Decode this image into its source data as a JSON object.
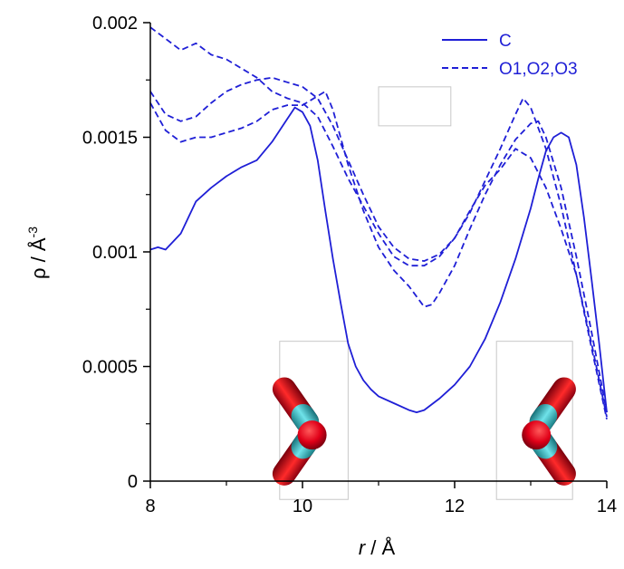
{
  "chart_data": {
    "type": "line",
    "xlabel": "r / Å",
    "ylabel": "ρ / Å-3",
    "xlim": [
      8,
      14
    ],
    "ylim": [
      0,
      0.002
    ],
    "x_ticks": [
      8,
      10,
      12,
      14
    ],
    "x_tick_labels": [
      "8",
      "10",
      "12",
      "14"
    ],
    "y_ticks": [
      0,
      0.0005,
      0.001,
      0.0015,
      0.002
    ],
    "y_tick_labels": [
      "0",
      "0.0005",
      "0.001",
      "0.0015",
      "0.002"
    ],
    "legend": {
      "position": "top-right",
      "entries": [
        "C",
        "O1,O2,O3"
      ]
    },
    "grid": false,
    "color": "#1f1fd6",
    "series": [
      {
        "name": "C",
        "style": "solid",
        "points": [
          [
            8.0,
            0.00101
          ],
          [
            8.1,
            0.00102
          ],
          [
            8.2,
            0.00101
          ],
          [
            8.4,
            0.00108
          ],
          [
            8.6,
            0.00122
          ],
          [
            8.8,
            0.00128
          ],
          [
            9.0,
            0.00133
          ],
          [
            9.2,
            0.00137
          ],
          [
            9.4,
            0.0014
          ],
          [
            9.6,
            0.00148
          ],
          [
            9.8,
            0.00158
          ],
          [
            9.9,
            0.00163
          ],
          [
            10.0,
            0.00161
          ],
          [
            10.1,
            0.00155
          ],
          [
            10.2,
            0.0014
          ],
          [
            10.3,
            0.00118
          ],
          [
            10.4,
            0.00097
          ],
          [
            10.5,
            0.00078
          ],
          [
            10.6,
            0.0006
          ],
          [
            10.7,
            0.0005
          ],
          [
            10.8,
            0.00044
          ],
          [
            10.9,
            0.0004
          ],
          [
            11.0,
            0.00037
          ],
          [
            11.2,
            0.00034
          ],
          [
            11.4,
            0.00031
          ],
          [
            11.5,
            0.0003
          ],
          [
            11.6,
            0.00031
          ],
          [
            11.8,
            0.00036
          ],
          [
            12.0,
            0.00042
          ],
          [
            12.2,
            0.0005
          ],
          [
            12.4,
            0.00062
          ],
          [
            12.6,
            0.00078
          ],
          [
            12.8,
            0.00097
          ],
          [
            13.0,
            0.00119
          ],
          [
            13.1,
            0.00132
          ],
          [
            13.2,
            0.00144
          ],
          [
            13.3,
            0.0015
          ],
          [
            13.4,
            0.00152
          ],
          [
            13.5,
            0.0015
          ],
          [
            13.6,
            0.00138
          ],
          [
            13.7,
            0.00115
          ],
          [
            13.8,
            0.00088
          ],
          [
            13.9,
            0.0006
          ],
          [
            14.0,
            0.0003
          ]
        ]
      },
      {
        "name": "O1",
        "style": "dashed",
        "points": [
          [
            8.0,
            0.00198
          ],
          [
            8.2,
            0.00193
          ],
          [
            8.4,
            0.00188
          ],
          [
            8.6,
            0.00191
          ],
          [
            8.8,
            0.00186
          ],
          [
            9.0,
            0.00184
          ],
          [
            9.2,
            0.0018
          ],
          [
            9.4,
            0.00176
          ],
          [
            9.6,
            0.0017
          ],
          [
            9.8,
            0.00167
          ],
          [
            10.0,
            0.00165
          ],
          [
            10.2,
            0.00159
          ],
          [
            10.4,
            0.00146
          ],
          [
            10.6,
            0.00132
          ],
          [
            10.8,
            0.0012
          ],
          [
            11.0,
            0.00108
          ],
          [
            11.2,
            0.00098
          ],
          [
            11.4,
            0.00094
          ],
          [
            11.6,
            0.00094
          ],
          [
            11.8,
            0.00098
          ],
          [
            12.0,
            0.00106
          ],
          [
            12.2,
            0.00118
          ],
          [
            12.4,
            0.00129
          ],
          [
            12.6,
            0.00136
          ],
          [
            12.8,
            0.00145
          ],
          [
            13.0,
            0.00141
          ],
          [
            13.2,
            0.00128
          ],
          [
            13.4,
            0.0011
          ],
          [
            13.6,
            0.0009
          ],
          [
            13.8,
            0.0006
          ],
          [
            14.0,
            0.00028
          ]
        ]
      },
      {
        "name": "O2",
        "style": "dashed",
        "points": [
          [
            8.0,
            0.0017
          ],
          [
            8.2,
            0.0016
          ],
          [
            8.4,
            0.00157
          ],
          [
            8.6,
            0.00159
          ],
          [
            8.8,
            0.00165
          ],
          [
            9.0,
            0.0017
          ],
          [
            9.2,
            0.00173
          ],
          [
            9.4,
            0.00175
          ],
          [
            9.6,
            0.00176
          ],
          [
            9.8,
            0.00174
          ],
          [
            10.0,
            0.00172
          ],
          [
            10.2,
            0.00167
          ],
          [
            10.4,
            0.00155
          ],
          [
            10.6,
            0.0014
          ],
          [
            10.8,
            0.00125
          ],
          [
            11.0,
            0.00111
          ],
          [
            11.2,
            0.00102
          ],
          [
            11.4,
            0.00097
          ],
          [
            11.6,
            0.00096
          ],
          [
            11.8,
            0.00099
          ],
          [
            12.0,
            0.00106
          ],
          [
            12.2,
            0.00117
          ],
          [
            12.4,
            0.00131
          ],
          [
            12.6,
            0.00145
          ],
          [
            12.8,
            0.0016
          ],
          [
            12.9,
            0.00167
          ],
          [
            13.0,
            0.00163
          ],
          [
            13.2,
            0.00145
          ],
          [
            13.4,
            0.0012
          ],
          [
            13.6,
            0.0009
          ],
          [
            13.8,
            0.00058
          ],
          [
            14.0,
            0.00027
          ]
        ]
      },
      {
        "name": "O3",
        "style": "dashed",
        "points": [
          [
            8.0,
            0.00165
          ],
          [
            8.2,
            0.00153
          ],
          [
            8.4,
            0.00148
          ],
          [
            8.6,
            0.0015
          ],
          [
            8.8,
            0.0015
          ],
          [
            9.0,
            0.00152
          ],
          [
            9.2,
            0.00154
          ],
          [
            9.4,
            0.00157
          ],
          [
            9.6,
            0.00162
          ],
          [
            9.8,
            0.00164
          ],
          [
            10.0,
            0.00164
          ],
          [
            10.2,
            0.00168
          ],
          [
            10.3,
            0.0017
          ],
          [
            10.4,
            0.00162
          ],
          [
            10.6,
            0.00138
          ],
          [
            10.8,
            0.00118
          ],
          [
            11.0,
            0.00102
          ],
          [
            11.2,
            0.00092
          ],
          [
            11.4,
            0.00085
          ],
          [
            11.6,
            0.00076
          ],
          [
            11.7,
            0.00077
          ],
          [
            11.8,
            0.00082
          ],
          [
            12.0,
            0.00094
          ],
          [
            12.2,
            0.0011
          ],
          [
            12.4,
            0.00125
          ],
          [
            12.6,
            0.00138
          ],
          [
            12.8,
            0.00149
          ],
          [
            13.0,
            0.00156
          ],
          [
            13.1,
            0.00157
          ],
          [
            13.2,
            0.0015
          ],
          [
            13.4,
            0.00128
          ],
          [
            13.6,
            0.00098
          ],
          [
            13.8,
            0.00065
          ],
          [
            14.0,
            0.0003
          ]
        ]
      }
    ]
  },
  "insets": [
    {
      "name": "molecule-left",
      "x_range": [
        9.7,
        10.6
      ],
      "y_range": [
        -8e-05,
        0.00061
      ],
      "orientation": "left"
    },
    {
      "name": "molecule-right",
      "x_range": [
        12.55,
        13.55
      ],
      "y_range": [
        -8e-05,
        0.00061
      ],
      "orientation": "right"
    }
  ],
  "empty_box": {
    "x_range": [
      11.0,
      11.95
    ],
    "y_range": [
      0.00155,
      0.00172
    ]
  }
}
